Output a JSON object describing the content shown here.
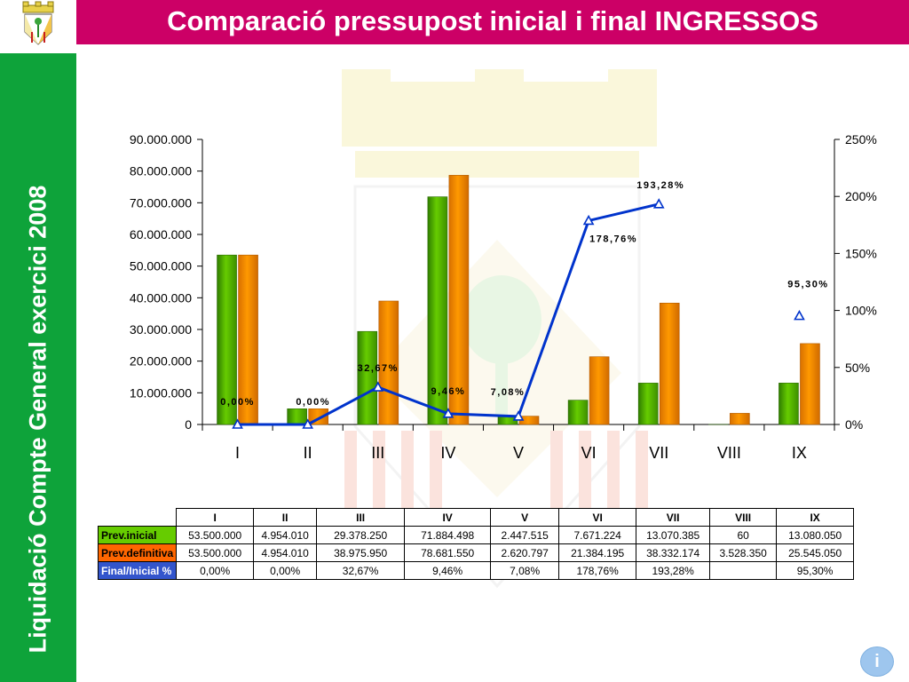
{
  "header": {
    "title": "Comparació pressupost inicial i final INGRESSOS"
  },
  "sidebar": {
    "text": "Liquidació Compte General exercici 2008"
  },
  "colors": {
    "title_bar": "#cc0066",
    "sidebar": "#0ea33a",
    "initial_bar": "#66cc00",
    "final_bar": "#ff9900",
    "line": "#0033cc"
  },
  "chart_data": {
    "type": "bar",
    "categories": [
      "I",
      "II",
      "III",
      "IV",
      "V",
      "VI",
      "VII",
      "VIII",
      "IX"
    ],
    "series": [
      {
        "name": "Prev.inicial",
        "values": [
          53500000,
          4954010,
          29378250,
          71884498,
          2447515,
          7671224,
          13070385,
          60,
          13080050
        ]
      },
      {
        "name": "Prev.definitiva",
        "values": [
          53500000,
          4954010,
          38975950,
          78681550,
          2620797,
          21384195,
          38332174,
          3528350,
          25545050
        ]
      },
      {
        "name": "Final/Inicial %",
        "type": "line",
        "axis": "right",
        "values": [
          0,
          0,
          32.67,
          9.46,
          7.08,
          178.76,
          193.28,
          null,
          95.3
        ]
      }
    ],
    "point_labels": [
      "0,00%",
      "0,00%",
      "32,67%",
      "9,46%",
      "7,08%",
      "178,76%",
      "193,28%",
      "",
      "95,30%"
    ],
    "ylim": [
      0,
      90000000
    ],
    "y_ticks": [
      "0",
      "10.000.000",
      "20.000.000",
      "30.000.000",
      "40.000.000",
      "50.000.000",
      "60.000.000",
      "70.000.000",
      "80.000.000",
      "90.000.000"
    ],
    "y2lim": [
      0,
      250
    ],
    "y2_ticks": [
      "0%",
      "50%",
      "100%",
      "150%",
      "200%",
      "250%"
    ],
    "legend": "none",
    "grid": false
  },
  "table": {
    "headers": [
      "I",
      "II",
      "III",
      "IV",
      "V",
      "VI",
      "VII",
      "VIII",
      "IX"
    ],
    "rows": [
      {
        "label": "Prev.inicial",
        "cells": [
          "53.500.000",
          "4.954.010",
          "29.378.250",
          "71.884.498",
          "2.447.515",
          "7.671.224",
          "13.070.385",
          "60",
          "13.080.050"
        ]
      },
      {
        "label": "Prev.definitiva",
        "cells": [
          "53.500.000",
          "4.954.010",
          "38.975.950",
          "78.681.550",
          "2.620.797",
          "21.384.195",
          "38.332.174",
          "3.528.350",
          "25.545.050"
        ]
      },
      {
        "label": "Final/Inicial %",
        "cells": [
          "0,00%",
          "0,00%",
          "32,67%",
          "9,46%",
          "7,08%",
          "178,76%",
          "193,28%",
          "",
          "95,30%"
        ]
      }
    ]
  },
  "info_button": {
    "label": "i"
  }
}
